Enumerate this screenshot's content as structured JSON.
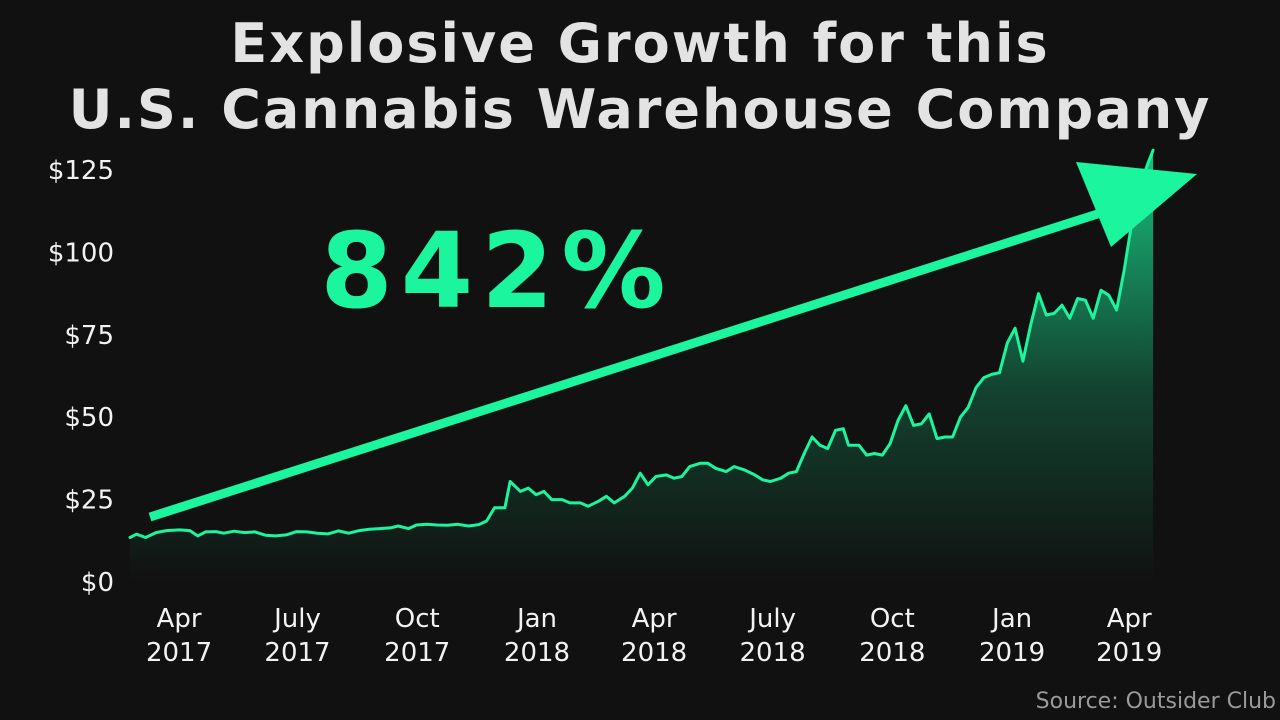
{
  "chart_data": {
    "type": "area",
    "title_lines": [
      "Explosive Growth for this",
      "U.S. Cannabis Warehouse Company"
    ],
    "annotation": "842%",
    "source": "Source: Outsider Club",
    "y_ticks": [
      "$0",
      "$25",
      "$50",
      "$75",
      "$100",
      "$125"
    ],
    "y_tick_values": [
      0,
      25,
      50,
      75,
      100,
      125
    ],
    "ylim": [
      0,
      125
    ],
    "x_ticks": [
      {
        "month": "Apr",
        "year": "2017",
        "t": 0
      },
      {
        "month": "July",
        "year": "2017",
        "t": 91
      },
      {
        "month": "Oct",
        "year": "2017",
        "t": 183
      },
      {
        "month": "Jan",
        "year": "2018",
        "t": 275
      },
      {
        "month": "Apr",
        "year": "2018",
        "t": 365
      },
      {
        "month": "July",
        "year": "2018",
        "t": 456
      },
      {
        "month": "Oct",
        "year": "2018",
        "t": 548
      },
      {
        "month": "Jan",
        "year": "2019",
        "t": 640
      },
      {
        "month": "Apr",
        "year": "2019",
        "t": 730
      }
    ],
    "x_range": [
      -30,
      832
    ],
    "series": [
      {
        "points": [
          [
            -30,
            13.5
          ],
          [
            -25,
            14.5
          ],
          [
            -18,
            13.5
          ],
          [
            -10,
            15
          ],
          [
            -2,
            15.6
          ],
          [
            8,
            15.8
          ],
          [
            16,
            15.6
          ],
          [
            22,
            14
          ],
          [
            28,
            15.2
          ],
          [
            36,
            15.3
          ],
          [
            42,
            14.8
          ],
          [
            50,
            15.4
          ],
          [
            58,
            15
          ],
          [
            66,
            15.2
          ],
          [
            74,
            14.2
          ],
          [
            82,
            14
          ],
          [
            90,
            14.3
          ],
          [
            98,
            15.3
          ],
          [
            106,
            15.2
          ],
          [
            114,
            14.8
          ],
          [
            122,
            14.6
          ],
          [
            130,
            15.5
          ],
          [
            138,
            14.8
          ],
          [
            146,
            15.6
          ],
          [
            154,
            16
          ],
          [
            162,
            16.2
          ],
          [
            170,
            16.4
          ],
          [
            176,
            17
          ],
          [
            184,
            16.2
          ],
          [
            190,
            17.3
          ],
          [
            198,
            17.5
          ],
          [
            206,
            17.3
          ],
          [
            214,
            17.2
          ],
          [
            222,
            17.5
          ],
          [
            230,
            17
          ],
          [
            238,
            17.4
          ],
          [
            244,
            18.5
          ],
          [
            250,
            22.5
          ],
          [
            258,
            22.5
          ],
          [
            262,
            30.5
          ],
          [
            270,
            27.5
          ],
          [
            276,
            28.5
          ],
          [
            282,
            26.5
          ],
          [
            288,
            27.5
          ],
          [
            294,
            25
          ],
          [
            302,
            25
          ],
          [
            308,
            24
          ],
          [
            316,
            24
          ],
          [
            322,
            23
          ],
          [
            330,
            24.5
          ],
          [
            336,
            26
          ],
          [
            342,
            24
          ],
          [
            350,
            26
          ],
          [
            356,
            28.5
          ],
          [
            362,
            33
          ],
          [
            368,
            29.5
          ],
          [
            374,
            32
          ],
          [
            382,
            32.5
          ],
          [
            388,
            31.5
          ],
          [
            394,
            32
          ],
          [
            400,
            35
          ],
          [
            408,
            36
          ],
          [
            414,
            36
          ],
          [
            420,
            34.5
          ],
          [
            428,
            33.5
          ],
          [
            434,
            35
          ],
          [
            442,
            34
          ],
          [
            450,
            32.5
          ],
          [
            456,
            31
          ],
          [
            462,
            30.5
          ],
          [
            470,
            31.5
          ],
          [
            476,
            33
          ],
          [
            482,
            33.5
          ],
          [
            488,
            39
          ],
          [
            494,
            44
          ],
          [
            500,
            41.5
          ],
          [
            506,
            40.5
          ],
          [
            512,
            46
          ],
          [
            518,
            46.5
          ],
          [
            522,
            41.5
          ],
          [
            530,
            41.5
          ],
          [
            536,
            38.5
          ],
          [
            542,
            39
          ],
          [
            548,
            38.5
          ],
          [
            554,
            42
          ],
          [
            560,
            49
          ],
          [
            566,
            53.5
          ],
          [
            572,
            47.5
          ],
          [
            578,
            48
          ],
          [
            584,
            51
          ],
          [
            590,
            43.5
          ],
          [
            596,
            44
          ],
          [
            602,
            44
          ],
          [
            608,
            50
          ],
          [
            614,
            53
          ],
          [
            620,
            59
          ],
          [
            626,
            62
          ],
          [
            632,
            63
          ],
          [
            638,
            63.5
          ],
          [
            644,
            72.5
          ],
          [
            650,
            77
          ],
          [
            656,
            67
          ],
          [
            662,
            78
          ],
          [
            668,
            87.5
          ],
          [
            674,
            81
          ],
          [
            680,
            81.5
          ],
          [
            686,
            84
          ],
          [
            692,
            80
          ],
          [
            698,
            86
          ],
          [
            704,
            85.5
          ],
          [
            710,
            80
          ],
          [
            716,
            88.5
          ],
          [
            722,
            87
          ],
          [
            728,
            82.5
          ],
          [
            734,
            95
          ],
          [
            740,
            110
          ],
          [
            746,
            120
          ],
          [
            752,
            127
          ],
          [
            756,
            131
          ]
        ]
      }
    ],
    "colors": {
      "background": "#111111",
      "accent": "#1bf59e",
      "title": "#e3e3e3",
      "axis_text": "#f2f2f2",
      "source": "#9a9a9a"
    }
  }
}
